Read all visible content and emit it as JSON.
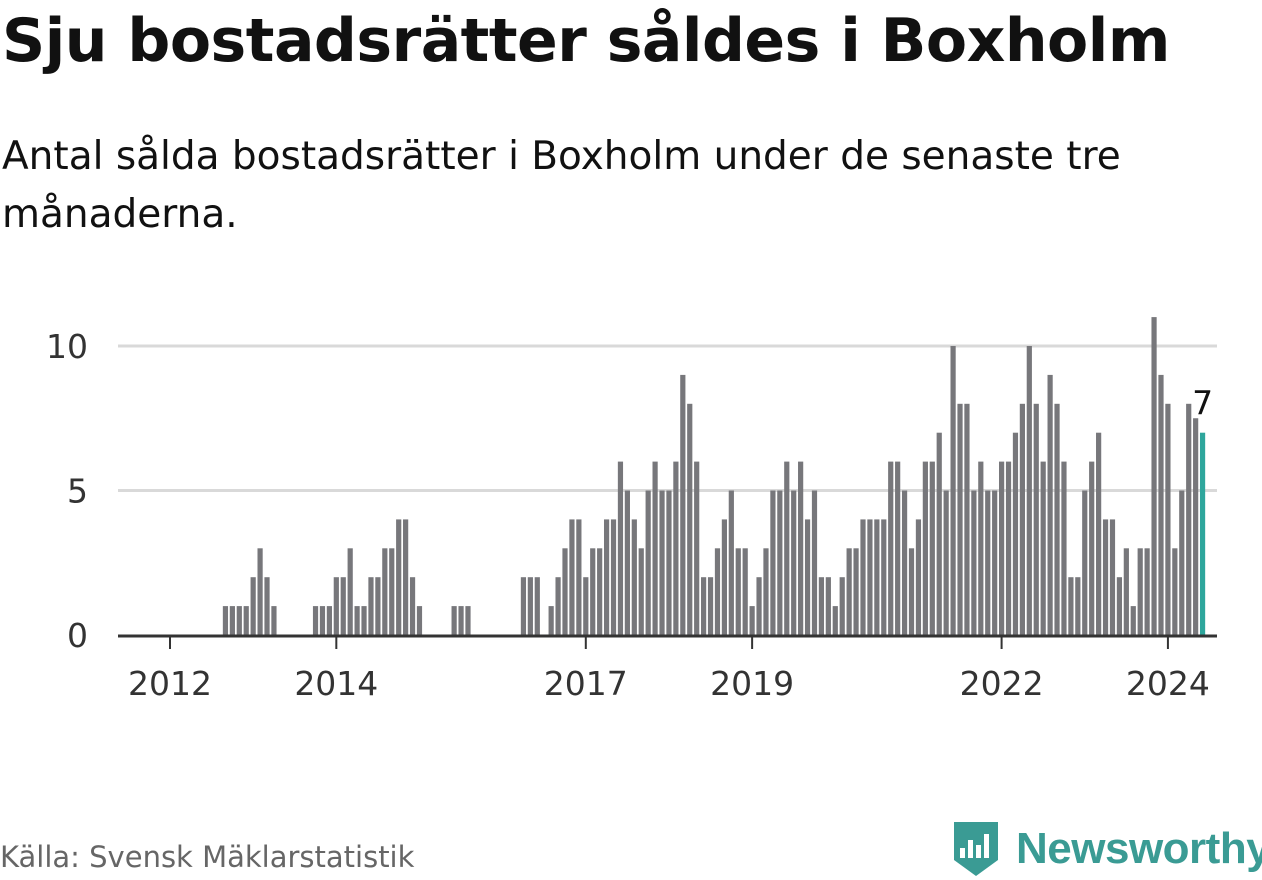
{
  "header": {
    "title": "Sju bostadsrätter såldes i Boxholm",
    "subtitle": "Antal sålda bostadsrätter i Boxholm under de senaste tre månaderna."
  },
  "footer": {
    "source": "Källa: Svensk Mäklarstatistik",
    "brand": "Newsworthy"
  },
  "colors": {
    "bar": "#77777b",
    "highlight": "#2ea69c",
    "grid": "#d9d9d9",
    "axis": "#333333",
    "brand": "#3a9b94"
  },
  "chart_data": {
    "type": "bar",
    "title": "Sju bostadsrätter såldes i Boxholm",
    "xlabel": "",
    "ylabel": "",
    "ylim": [
      0,
      11
    ],
    "y_ticks": [
      0,
      5,
      10
    ],
    "x_tick_labels": [
      {
        "label": "2012",
        "index": 0
      },
      {
        "label": "2014",
        "index": 24
      },
      {
        "label": "2017",
        "index": 60
      },
      {
        "label": "2019",
        "index": 84
      },
      {
        "label": "2022",
        "index": 120
      },
      {
        "label": "2024",
        "index": 144
      }
    ],
    "series": [
      {
        "name": "Antal sålda bostadsrätter",
        "values": [
          0,
          0,
          0,
          0,
          0,
          0,
          0,
          0,
          1,
          1,
          1,
          1,
          2,
          3,
          2,
          1,
          0,
          0,
          0,
          0,
          0,
          1,
          1,
          1,
          2,
          2,
          3,
          1,
          1,
          2,
          2,
          3,
          3,
          4,
          4,
          2,
          1,
          0,
          0,
          0,
          0,
          1,
          1,
          1,
          0,
          0,
          0,
          0,
          0,
          0,
          0,
          2,
          2,
          2,
          0,
          1,
          2,
          3,
          4,
          4,
          2,
          3,
          3,
          4,
          4,
          6,
          5,
          4,
          3,
          5,
          6,
          5,
          5,
          6,
          9,
          8,
          6,
          2,
          2,
          3,
          4,
          5,
          3,
          3,
          1,
          2,
          3,
          5,
          5,
          6,
          5,
          6,
          4,
          5,
          2,
          2,
          1,
          2,
          3,
          3,
          4,
          4,
          4,
          4,
          6,
          6,
          5,
          3,
          4,
          6,
          6,
          7,
          5,
          10,
          8,
          8,
          5,
          6,
          5,
          5,
          6,
          6,
          7,
          8,
          10,
          8,
          6,
          9,
          8,
          6,
          2,
          2,
          5,
          6,
          7,
          4,
          4,
          2,
          3,
          1,
          3,
          3,
          11,
          9,
          8,
          3,
          5,
          8,
          7.5,
          7
        ]
      }
    ],
    "highlight": {
      "value": 7,
      "label": "7"
    }
  }
}
